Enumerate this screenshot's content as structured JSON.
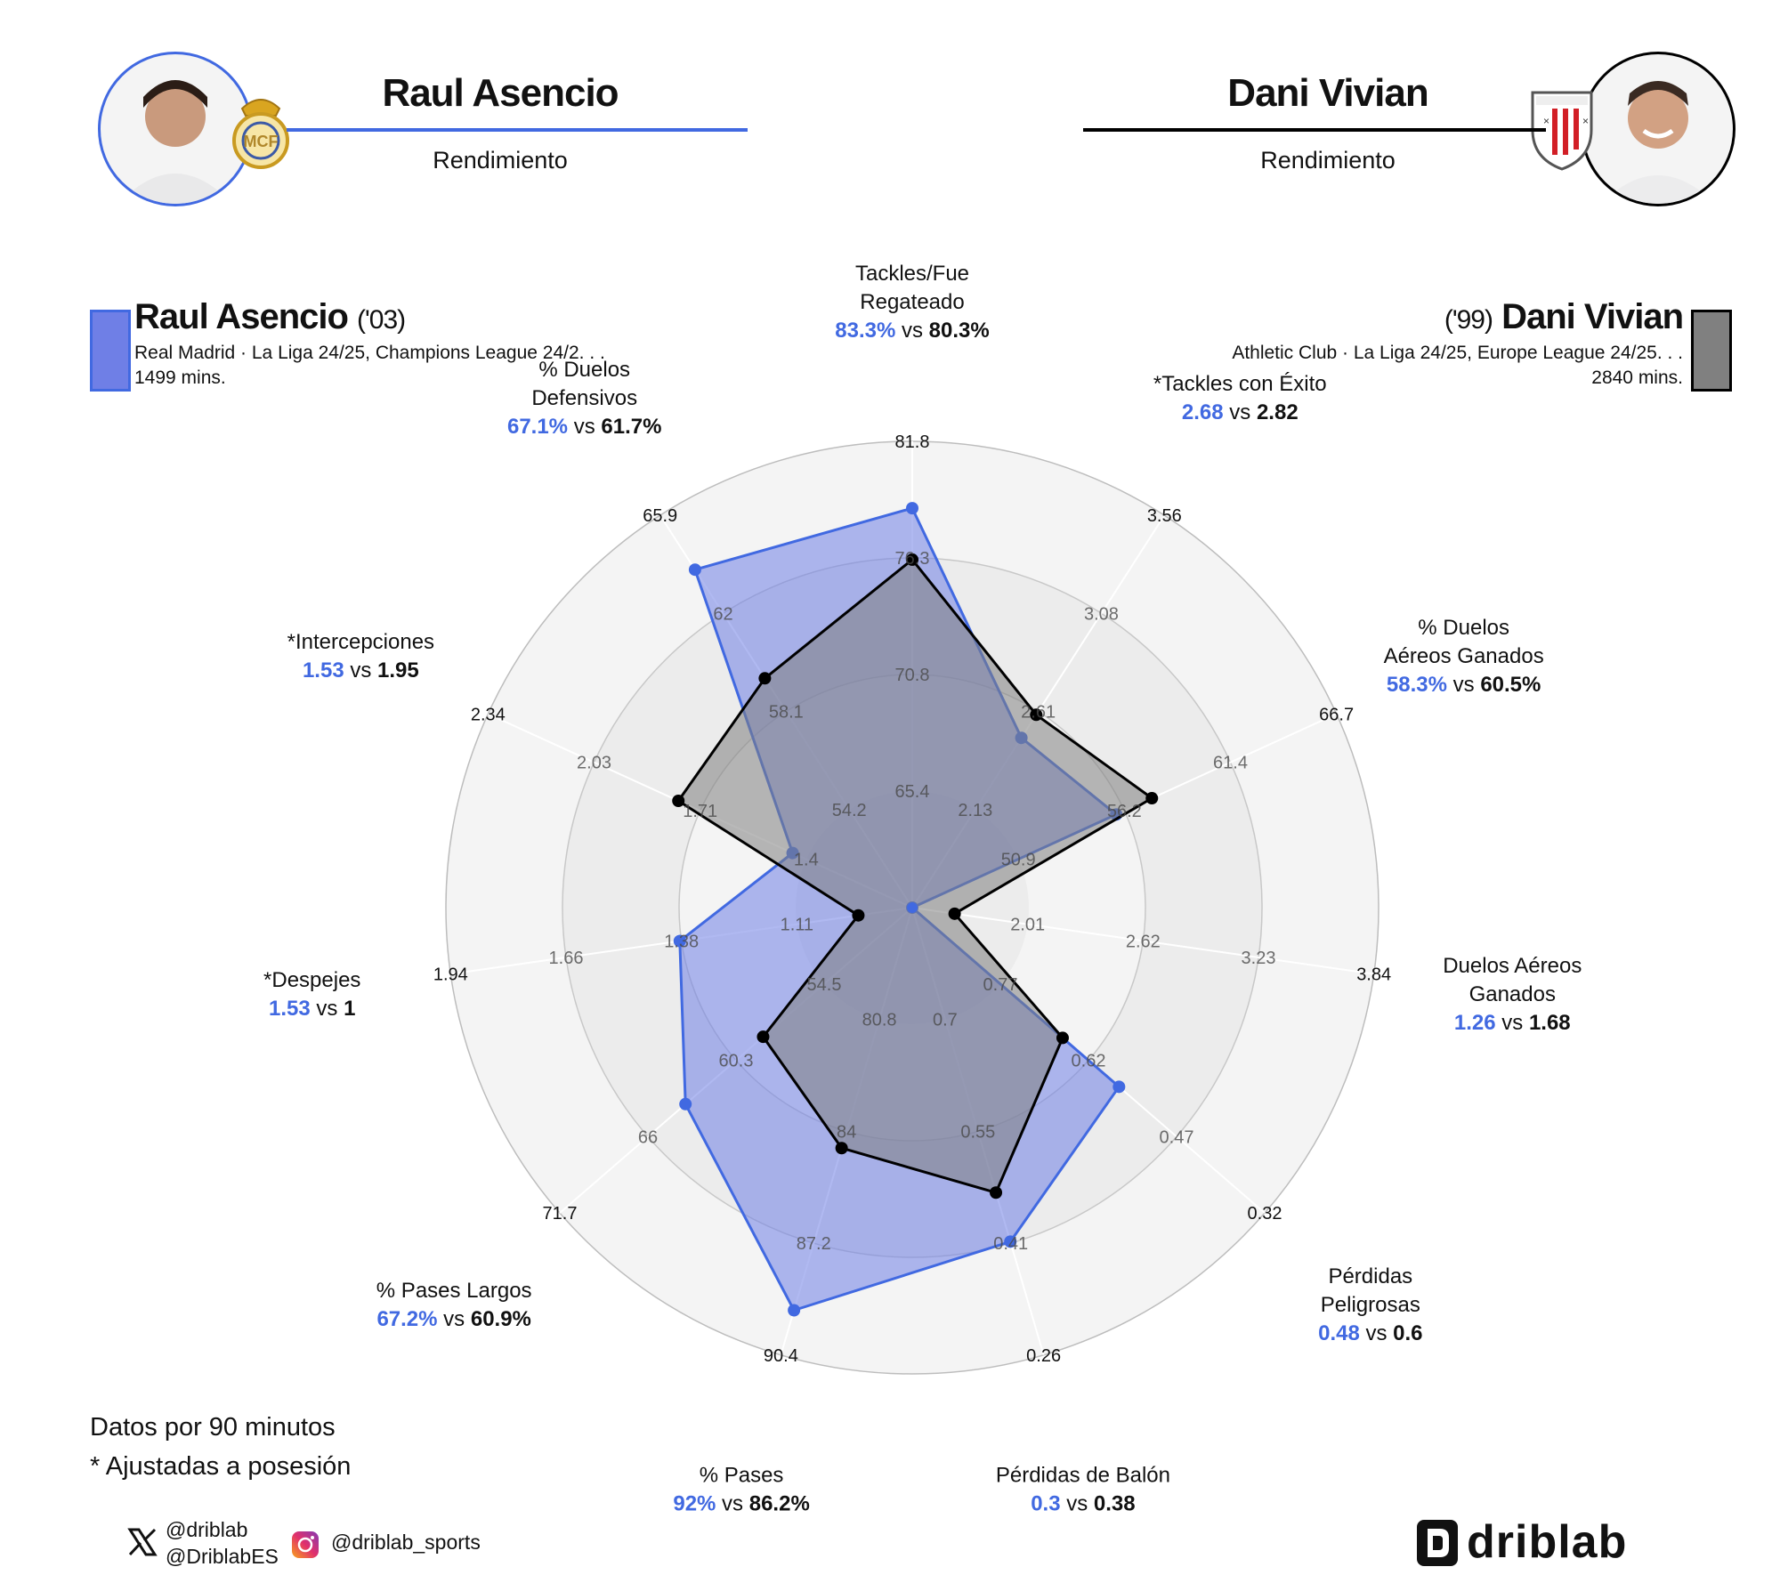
{
  "header": {
    "left": {
      "name": "Raul Asencio",
      "subtitle": "Rendimiento",
      "color": "#4169e1"
    },
    "right": {
      "name": "Dani Vivian",
      "subtitle": "Rendimiento",
      "color": "#000000"
    }
  },
  "player1": {
    "name": "Raul Asencio",
    "year": "('03)",
    "competitions": "Real Madrid · La Liga 24/25, Champions League 24/2. . .",
    "minutes": "1499 mins.",
    "color": "#4169e1",
    "fill": "#6f7fe6"
  },
  "player2": {
    "name": "Dani Vivian",
    "year": "('99)",
    "competitions": "Athletic Club · La Liga 24/25, Europe League 24/25. . .",
    "minutes": "2840 mins.",
    "color": "#000000",
    "fill": "#808080"
  },
  "chart_data": {
    "type": "radar",
    "series": [
      {
        "name": "Raul Asencio",
        "values": [
          83.3,
          2.68,
          58.3,
          1.26,
          0.48,
          0.3,
          92,
          67.2,
          1.53,
          1.53,
          67.1
        ]
      },
      {
        "name": "Dani Vivian",
        "values": [
          80.3,
          2.82,
          60.5,
          1.68,
          0.6,
          0.38,
          86.2,
          60.9,
          1,
          1.95,
          61.7
        ]
      }
    ],
    "axes": [
      {
        "label": "Tackles/Fue Regateado",
        "v1": "83.3%",
        "v2": "80.3%",
        "ticks": [
          "65.4",
          "70.8",
          "76.3",
          "81.8"
        ],
        "min": 60,
        "max": 87.2
      },
      {
        "label": "*Tackles con Éxito",
        "v1": "2.68",
        "v2": "2.82",
        "ticks": [
          "2.13",
          "2.61",
          "3.08",
          "3.56"
        ],
        "min": 1.65,
        "max": 4.03
      },
      {
        "label": "% Duelos Aéreos Ganados",
        "v1": "58.3%",
        "v2": "60.5%",
        "ticks": [
          "50.9",
          "56.2",
          "61.4",
          "66.7"
        ],
        "min": 45.7,
        "max": 71.9
      },
      {
        "label": "Duelos Aéreos Ganados",
        "v1": "1.26",
        "v2": "1.68",
        "ticks": [
          "2.01",
          "2.62",
          "3.23",
          "3.84"
        ],
        "min": 1.4,
        "max": 4.45
      },
      {
        "label": "Pérdidas Peligrosas",
        "v1": "0.48",
        "v2": "0.6",
        "ticks": [
          "0.77",
          "0.62",
          "0.47",
          "0.32"
        ],
        "min": 0.92,
        "max": 0.17
      },
      {
        "label": "Pérdidas de Balón",
        "v1": "0.3",
        "v2": "0.38",
        "ticks": [
          "0.7",
          "0.55",
          "0.41",
          "0.26"
        ],
        "min": 0.845,
        "max": 0.115
      },
      {
        "label": "% Pases",
        "v1": "92%",
        "v2": "86.2%",
        "ticks": [
          "80.8",
          "84",
          "87.2",
          "90.4"
        ],
        "min": 77.6,
        "max": 93.6
      },
      {
        "label": "% Pases Largos",
        "v1": "67.2%",
        "v2": "60.9%",
        "ticks": [
          "54.5",
          "60.3",
          "66",
          "71.7"
        ],
        "min": 48.8,
        "max": 77.4
      },
      {
        "label": "*Despejes",
        "v1": "1.53",
        "v2": "1",
        "ticks": [
          "1.11",
          "1.38",
          "1.66",
          "1.94"
        ],
        "min": 0.84,
        "max": 2.21
      },
      {
        "label": "*Intercepciones",
        "v1": "1.53",
        "v2": "1.95",
        "ticks": [
          "1.4",
          "1.71",
          "2.03",
          "2.34"
        ],
        "min": 1.09,
        "max": 2.65
      },
      {
        "label": "% Duelos Defensivos",
        "v1": "67.1%",
        "v2": "61.7%",
        "ticks": [
          "54.2",
          "58.1",
          "62",
          "65.9"
        ],
        "min": 50.3,
        "max": 69.8
      }
    ],
    "vs": "vs",
    "grid": true
  },
  "footer": {
    "note1": "Datos por 90 minutos",
    "note2": "* Ajustadas a posesión",
    "twitter1": "@driblab",
    "twitter2": "@DriblabES",
    "instagram": "@driblab_sports",
    "brand": "driblab"
  }
}
